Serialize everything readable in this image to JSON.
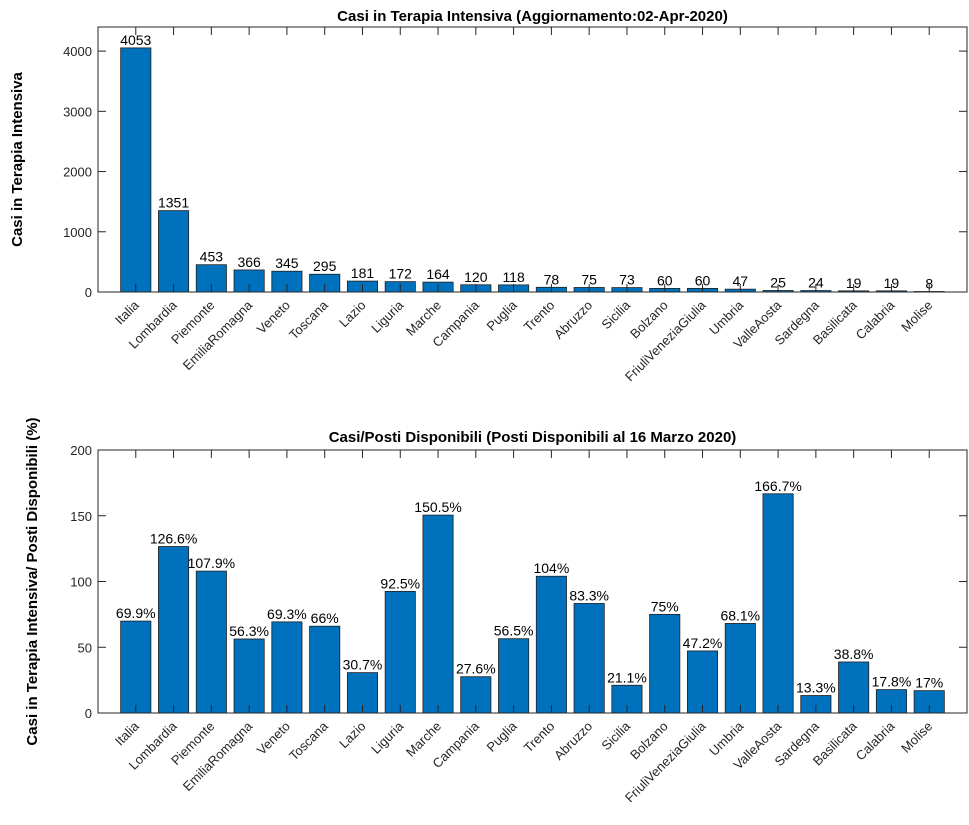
{
  "colors": {
    "bar": "#0072BD",
    "axis": "#262626"
  },
  "chart_data": [
    {
      "type": "bar",
      "title": "Casi in Terapia Intensiva (Aggiornamento:02-Apr-2020)",
      "xlabel": "",
      "ylabel": "Casi in Terapia Intensiva",
      "ylim": [
        0,
        4400
      ],
      "yticks": [
        0,
        1000,
        2000,
        3000,
        4000
      ],
      "grid": false,
      "categories": [
        "Italia",
        "Lombardia",
        "Piemonte",
        "EmiliaRomagna",
        "Veneto",
        "Toscana",
        "Lazio",
        "Liguria",
        "Marche",
        "Campania",
        "Puglia",
        "Trento",
        "Abruzzo",
        "Sicilia",
        "Bolzano",
        "FriuliVeneziaGiulia",
        "Umbria",
        "ValleAosta",
        "Sardegna",
        "Basilicata",
        "Calabria",
        "Molise"
      ],
      "values": [
        4053,
        1351,
        453,
        366,
        345,
        295,
        181,
        172,
        164,
        120,
        118,
        78,
        75,
        73,
        60,
        60,
        47,
        25,
        24,
        19,
        19,
        8
      ],
      "labels": [
        "4053",
        "1351",
        "453",
        "366",
        "345",
        "295",
        "181",
        "172",
        "164",
        "120",
        "118",
        "78",
        "75",
        "73",
        "60",
        "60",
        "47",
        "25",
        "24",
        "19",
        "19",
        "8"
      ]
    },
    {
      "type": "bar",
      "title": "Casi/Posti Disponibili (Posti Disponibili al 16 Marzo 2020)",
      "xlabel": "",
      "ylabel": "Casi in Terapia Intensiva/ Posti Disponibili (%)",
      "ylim": [
        0,
        200
      ],
      "yticks": [
        0,
        50,
        100,
        150,
        200
      ],
      "grid": false,
      "categories": [
        "Italia",
        "Lombardia",
        "Piemonte",
        "EmiliaRomagna",
        "Veneto",
        "Toscana",
        "Lazio",
        "Liguria",
        "Marche",
        "Campania",
        "Puglia",
        "Trento",
        "Abruzzo",
        "Sicilia",
        "Bolzano",
        "FriuliVeneziaGiulia",
        "Umbria",
        "ValleAosta",
        "Sardegna",
        "Basilicata",
        "Calabria",
        "Molise"
      ],
      "values": [
        69.9,
        126.6,
        107.9,
        56.3,
        69.3,
        66,
        30.7,
        92.5,
        150.5,
        27.6,
        56.5,
        104,
        83.3,
        21.1,
        75,
        47.2,
        68.1,
        166.7,
        13.3,
        38.8,
        17.8,
        17
      ],
      "labels": [
        "69.9%",
        "126.6%",
        "107.9%",
        "56.3%",
        "69.3%",
        "66%",
        "30.7%",
        "92.5%",
        "150.5%",
        "27.6%",
        "56.5%",
        "104%",
        "83.3%",
        "21.1%",
        "75%",
        "47.2%",
        "68.1%",
        "166.7%",
        "13.3%",
        "38.8%",
        "17.8%",
        "17%"
      ]
    }
  ]
}
